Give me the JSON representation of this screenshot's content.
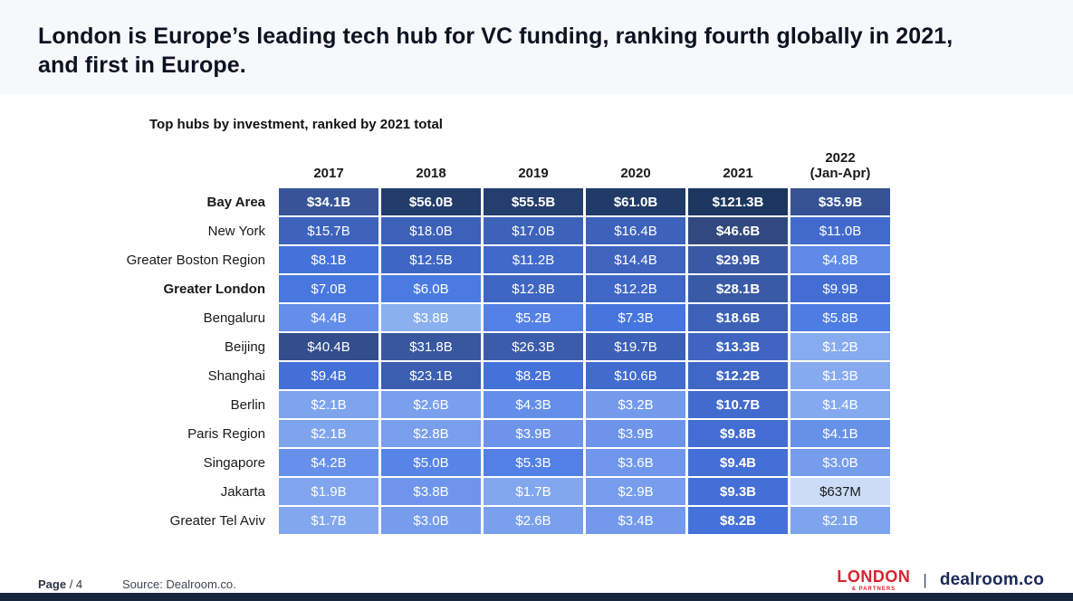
{
  "slide": {
    "title": "London is Europe’s leading tech hub for VC funding, ranking fourth globally in 2021, and first in Europe.",
    "footer": {
      "page_label": "Page",
      "page_number": "/ 4",
      "source": "Source: Dealroom.co.",
      "logo_london": "LONDON",
      "logo_london_sub": "& PARTNERS",
      "logo_separator": "|",
      "logo_dealroom": "dealroom.co"
    },
    "colors": {
      "header_band": "#f7f8fc",
      "bottom_bar": "#17253f",
      "london_red": "#d9232e",
      "dealroom_navy": "#1b2b57",
      "heat_darkest": "#1c3660",
      "heat_lightest": "#cadcf7"
    }
  },
  "chart_data": {
    "type": "heatmap",
    "title": "Top hubs by investment, ranked by 2021 total",
    "unit_hint": "values as shown, $B / $M",
    "legend_position": "none",
    "columns": [
      {
        "label": "2017",
        "sublabel": ""
      },
      {
        "label": "2018",
        "sublabel": ""
      },
      {
        "label": "2019",
        "sublabel": ""
      },
      {
        "label": "2020",
        "sublabel": ""
      },
      {
        "label": "2021",
        "sublabel": ""
      },
      {
        "label": "2022",
        "sublabel": "(Jan-Apr)"
      }
    ],
    "rows": [
      {
        "label": "Bay Area",
        "label_bold": true,
        "cells": [
          {
            "text": "$34.1B",
            "v": 34.1,
            "bg": "#375498",
            "bold": true
          },
          {
            "text": "$56.0B",
            "v": 56.0,
            "bg": "#233d6b",
            "bold": true
          },
          {
            "text": "$55.5B",
            "v": 55.5,
            "bg": "#243e6d",
            "bold": true
          },
          {
            "text": "$61.0B",
            "v": 61.0,
            "bg": "#213b68",
            "bold": true
          },
          {
            "text": "$121.3B",
            "v": 121.3,
            "bg": "#1c3660",
            "bold": true
          },
          {
            "text": "$35.9B",
            "v": 35.9,
            "bg": "#365295",
            "bold": true
          }
        ]
      },
      {
        "label": "New York",
        "label_bold": false,
        "cells": [
          {
            "text": "$15.7B",
            "v": 15.7,
            "bg": "#3d63bc",
            "bold": false
          },
          {
            "text": "$18.0B",
            "v": 18.0,
            "bg": "#3c61b8",
            "bold": false
          },
          {
            "text": "$17.0B",
            "v": 17.0,
            "bg": "#3d62ba",
            "bold": false
          },
          {
            "text": "$16.4B",
            "v": 16.4,
            "bg": "#3d62bb",
            "bold": false
          },
          {
            "text": "$46.6B",
            "v": 46.6,
            "bg": "#32497f",
            "bold": true
          },
          {
            "text": "$11.0B",
            "v": 11.0,
            "bg": "#416acc",
            "bold": false
          }
        ]
      },
      {
        "label": "Greater Boston Region",
        "label_bold": false,
        "cells": [
          {
            "text": "$8.1B",
            "v": 8.1,
            "bg": "#4572da",
            "bold": false
          },
          {
            "text": "$12.5B",
            "v": 12.5,
            "bg": "#3f66c4",
            "bold": false
          },
          {
            "text": "$11.2B",
            "v": 11.2,
            "bg": "#4169ca",
            "bold": false
          },
          {
            "text": "$14.4B",
            "v": 14.4,
            "bg": "#3e64be",
            "bold": false
          },
          {
            "text": "$29.9B",
            "v": 29.9,
            "bg": "#3959a4",
            "bold": true
          },
          {
            "text": "$4.8B",
            "v": 4.8,
            "bg": "#5f8ae8",
            "bold": false
          }
        ]
      },
      {
        "label": "Greater London",
        "label_bold": true,
        "cells": [
          {
            "text": "$7.0B",
            "v": 7.0,
            "bg": "#4877e0",
            "bold": false
          },
          {
            "text": "$6.0B",
            "v": 6.0,
            "bg": "#4b7ae2",
            "bold": false
          },
          {
            "text": "$12.8B",
            "v": 12.8,
            "bg": "#3f66c3",
            "bold": false
          },
          {
            "text": "$12.2B",
            "v": 12.2,
            "bg": "#4067c6",
            "bold": false
          },
          {
            "text": "$28.1B",
            "v": 28.1,
            "bg": "#395aa7",
            "bold": true
          },
          {
            "text": "$9.9B",
            "v": 9.9,
            "bg": "#436dd2",
            "bold": false
          }
        ]
      },
      {
        "label": "Bengaluru",
        "label_bold": false,
        "cells": [
          {
            "text": "$4.4B",
            "v": 4.4,
            "bg": "#638ee9",
            "bold": false
          },
          {
            "text": "$3.8B",
            "v": 3.8,
            "bg": "#8ab0ef",
            "bold": false
          },
          {
            "text": "$5.2B",
            "v": 5.2,
            "bg": "#5381e5",
            "bold": false
          },
          {
            "text": "$7.3B",
            "v": 7.3,
            "bg": "#4775de",
            "bold": false
          },
          {
            "text": "$18.6B",
            "v": 18.6,
            "bg": "#3c61b7",
            "bold": true
          },
          {
            "text": "$5.8B",
            "v": 5.8,
            "bg": "#4d7ce3",
            "bold": false
          }
        ]
      },
      {
        "label": "Beijing",
        "label_bold": false,
        "cells": [
          {
            "text": "$40.4B",
            "v": 40.4,
            "bg": "#344e8c",
            "bold": false
          },
          {
            "text": "$31.8B",
            "v": 31.8,
            "bg": "#38579f",
            "bold": false
          },
          {
            "text": "$26.3B",
            "v": 26.3,
            "bg": "#3a5cab",
            "bold": false
          },
          {
            "text": "$19.7B",
            "v": 19.7,
            "bg": "#3c60b5",
            "bold": false
          },
          {
            "text": "$13.3B",
            "v": 13.3,
            "bg": "#3f65c1",
            "bold": true
          },
          {
            "text": "$1.2B",
            "v": 1.2,
            "bg": "#87abef",
            "bold": false
          }
        ]
      },
      {
        "label": "Shanghai",
        "label_bold": false,
        "cells": [
          {
            "text": "$9.4B",
            "v": 9.4,
            "bg": "#446fd6",
            "bold": false
          },
          {
            "text": "$23.1B",
            "v": 23.1,
            "bg": "#3b5eb0",
            "bold": false
          },
          {
            "text": "$8.2B",
            "v": 8.2,
            "bg": "#4572da",
            "bold": false
          },
          {
            "text": "$10.6B",
            "v": 10.6,
            "bg": "#426bce",
            "bold": false
          },
          {
            "text": "$12.2B",
            "v": 12.2,
            "bg": "#4067c6",
            "bold": true
          },
          {
            "text": "$1.3B",
            "v": 1.3,
            "bg": "#86aaef",
            "bold": false
          }
        ]
      },
      {
        "label": "Berlin",
        "label_bold": false,
        "cells": [
          {
            "text": "$2.1B",
            "v": 2.1,
            "bg": "#7ea4ed",
            "bold": false
          },
          {
            "text": "$2.6B",
            "v": 2.6,
            "bg": "#7aa0ed",
            "bold": false
          },
          {
            "text": "$4.3B",
            "v": 4.3,
            "bg": "#648fe9",
            "bold": false
          },
          {
            "text": "$3.2B",
            "v": 3.2,
            "bg": "#749aec",
            "bold": false
          },
          {
            "text": "$10.7B",
            "v": 10.7,
            "bg": "#426bce",
            "bold": true
          },
          {
            "text": "$1.4B",
            "v": 1.4,
            "bg": "#85a9ee",
            "bold": false
          }
        ]
      },
      {
        "label": "Paris Region",
        "label_bold": false,
        "cells": [
          {
            "text": "$2.1B",
            "v": 2.1,
            "bg": "#7ea4ed",
            "bold": false
          },
          {
            "text": "$2.8B",
            "v": 2.8,
            "bg": "#789eec",
            "bold": false
          },
          {
            "text": "$3.9B",
            "v": 3.9,
            "bg": "#6d94ea",
            "bold": false
          },
          {
            "text": "$3.9B",
            "v": 3.9,
            "bg": "#6d94ea",
            "bold": false
          },
          {
            "text": "$9.8B",
            "v": 9.8,
            "bg": "#436dd3",
            "bold": true
          },
          {
            "text": "$4.1B",
            "v": 4.1,
            "bg": "#6791e9",
            "bold": false
          }
        ]
      },
      {
        "label": "Singapore",
        "label_bold": false,
        "cells": [
          {
            "text": "$4.2B",
            "v": 4.2,
            "bg": "#6690e9",
            "bold": false
          },
          {
            "text": "$5.0B",
            "v": 5.0,
            "bg": "#5784e6",
            "bold": false
          },
          {
            "text": "$5.3B",
            "v": 5.3,
            "bg": "#5280e5",
            "bold": false
          },
          {
            "text": "$3.6B",
            "v": 3.6,
            "bg": "#7097eb",
            "bold": false
          },
          {
            "text": "$9.4B",
            "v": 9.4,
            "bg": "#446fd6",
            "bold": true
          },
          {
            "text": "$3.0B",
            "v": 3.0,
            "bg": "#769cec",
            "bold": false
          }
        ]
      },
      {
        "label": "Jakarta",
        "label_bold": false,
        "cells": [
          {
            "text": "$1.9B",
            "v": 1.9,
            "bg": "#80a5ee",
            "bold": false
          },
          {
            "text": "$3.8B",
            "v": 3.8,
            "bg": "#6e95eb",
            "bold": false
          },
          {
            "text": "$1.7B",
            "v": 1.7,
            "bg": "#82a7ee",
            "bold": false
          },
          {
            "text": "$2.9B",
            "v": 2.9,
            "bg": "#779dec",
            "bold": false
          },
          {
            "text": "$9.3B",
            "v": 9.3,
            "bg": "#446fd7",
            "bold": true
          },
          {
            "text": "$637M",
            "v": 0.637,
            "bg": "#cadcf7",
            "fg": "#1b1b1b",
            "bold": false
          }
        ]
      },
      {
        "label": "Greater Tel Aviv",
        "label_bold": false,
        "cells": [
          {
            "text": "$1.7B",
            "v": 1.7,
            "bg": "#82a7ee",
            "bold": false
          },
          {
            "text": "$3.0B",
            "v": 3.0,
            "bg": "#769cec",
            "bold": false
          },
          {
            "text": "$2.6B",
            "v": 2.6,
            "bg": "#7aa0ed",
            "bold": false
          },
          {
            "text": "$3.4B",
            "v": 3.4,
            "bg": "#7299eb",
            "bold": false
          },
          {
            "text": "$8.2B",
            "v": 8.2,
            "bg": "#4572da",
            "bold": true
          },
          {
            "text": "$2.1B",
            "v": 2.1,
            "bg": "#7ea4ed",
            "bold": false
          }
        ]
      }
    ]
  }
}
